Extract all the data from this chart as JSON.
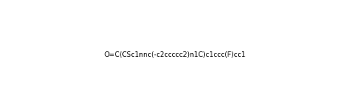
{
  "smiles": "O=C(CSc1nnc(-c2ccccc2)n1C)c1ccc(F)cc1",
  "title": "",
  "bg_color": "#ffffff",
  "line_color": "#1a1a1a",
  "fig_width": 4.35,
  "fig_height": 1.36,
  "dpi": 100
}
